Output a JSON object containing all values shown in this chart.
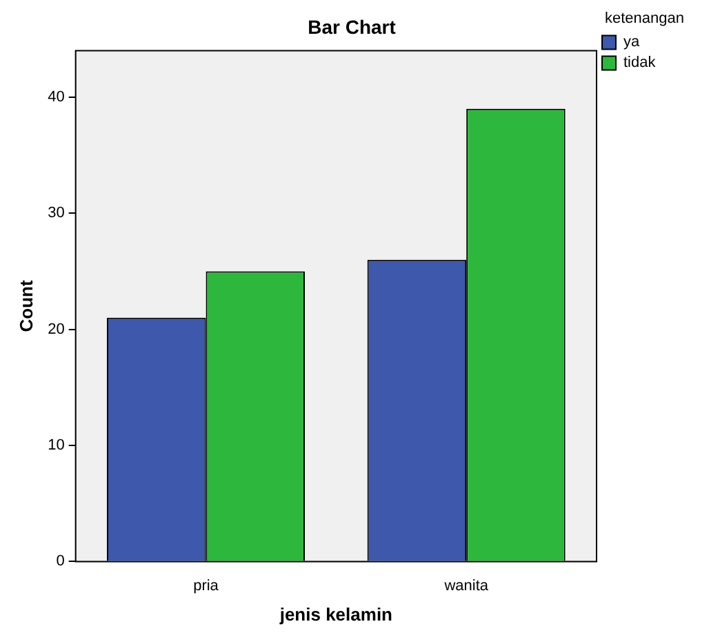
{
  "chart_data": {
    "type": "bar",
    "title": "Bar Chart",
    "xlabel": "jenis kelamin",
    "ylabel": "Count",
    "legend_title": "ketenangan",
    "categories": [
      "pria",
      "wanita"
    ],
    "series": [
      {
        "name": "ya",
        "color": "#3e58ac",
        "values": [
          21,
          26
        ]
      },
      {
        "name": "tidak",
        "color": "#2db83d",
        "values": [
          25,
          39
        ]
      }
    ],
    "ylim": [
      0,
      44
    ],
    "yticks": [
      0,
      10,
      20,
      30,
      40
    ],
    "grid": false,
    "legend": "top right"
  }
}
